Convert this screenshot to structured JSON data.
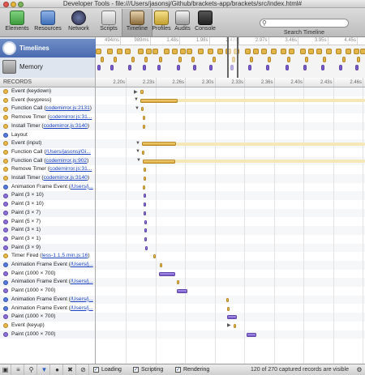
{
  "window": {
    "title": "Developer Tools - file:///Users/jasonsj/Github/brackets-app/brackets/src/index.html#"
  },
  "toolbar": {
    "tools": [
      {
        "label": "Elements",
        "icon": "elements-icon",
        "color": "#3d9a3d"
      },
      {
        "label": "Resources",
        "icon": "resources-icon",
        "color": "#3f6fb8"
      },
      {
        "label": "Network",
        "icon": "network-icon",
        "color": "#2c2c4a"
      },
      {
        "label": "Scripts",
        "icon": "scripts-icon",
        "color": "#5a5a5a"
      },
      {
        "label": "Timeline",
        "icon": "timeline-icon",
        "color": "#8b6a3a"
      },
      {
        "label": "Profiles",
        "icon": "profiles-icon",
        "color": "#c4a030"
      },
      {
        "label": "Audits",
        "icon": "audits-icon",
        "color": "#999999"
      },
      {
        "label": "Console",
        "icon": "console-icon",
        "color": "#333333"
      }
    ],
    "search_placeholder": "",
    "search_label": "Search Timeline"
  },
  "overview": {
    "items": [
      {
        "label": "Timelines",
        "icon": "clock-icon"
      },
      {
        "label": "Memory",
        "icon": "memory-icon"
      }
    ],
    "ticks": [
      "494ms",
      "989ms",
      "1.48s",
      "1.98s",
      "2.47s",
      "2.97s",
      "3.46s",
      "3.95s",
      "4.45s"
    ]
  },
  "records_header": "RECORDS",
  "ruler_ticks": [
    "2.20s",
    "2.23s",
    "2.26s",
    "2.30s",
    "2.33s",
    "2.36s",
    "2.40s",
    "2.43s",
    "2.46s"
  ],
  "records": [
    {
      "color": "y",
      "text": "Event (keydown)",
      "link": ""
    },
    {
      "color": "y",
      "text": "Event (keypress)",
      "link": ""
    },
    {
      "color": "y",
      "text": "Function Call (",
      "link": "codemirror.js:2131",
      "after": ")"
    },
    {
      "color": "y",
      "text": "Remove Timer (",
      "link": "codemirror.js:31...",
      "after": ""
    },
    {
      "color": "y",
      "text": "Install Timer (",
      "link": "codemirror.js:3140",
      "after": ")"
    },
    {
      "color": "b",
      "text": "Layout",
      "link": ""
    },
    {
      "color": "y",
      "text": "Event (input)",
      "link": ""
    },
    {
      "color": "y",
      "text": "Function Call (",
      "link": "/Users/jasonsj/Gi...",
      "after": ""
    },
    {
      "color": "y",
      "text": "Function Call (",
      "link": "codemirror.js:902",
      "after": ")"
    },
    {
      "color": "y",
      "text": "Remove Timer (",
      "link": "codemirror.js:31...",
      "after": ""
    },
    {
      "color": "y",
      "text": "Install Timer (",
      "link": "codemirror.js:3140",
      "after": ")"
    },
    {
      "color": "b",
      "text": "Animation Frame Event (",
      "link": "/Users/j...",
      "after": ""
    },
    {
      "color": "p",
      "text": "Paint (3 × 10)",
      "link": ""
    },
    {
      "color": "p",
      "text": "Paint (3 × 10)",
      "link": ""
    },
    {
      "color": "p",
      "text": "Paint (3 × 7)",
      "link": ""
    },
    {
      "color": "p",
      "text": "Paint (5 × 7)",
      "link": ""
    },
    {
      "color": "p",
      "text": "Paint (3 × 1)",
      "link": ""
    },
    {
      "color": "p",
      "text": "Paint (3 × 1)",
      "link": ""
    },
    {
      "color": "p",
      "text": "Paint (3 × 9)",
      "link": ""
    },
    {
      "color": "y",
      "text": "Timer Fired (",
      "link": "less-1.1.5.min.js:16",
      "after": ")"
    },
    {
      "color": "b",
      "text": "Animation Frame Event (",
      "link": "/Users/j...",
      "after": ""
    },
    {
      "color": "p",
      "text": "Paint (1000 × 700)",
      "link": ""
    },
    {
      "color": "b",
      "text": "Animation Frame Event (",
      "link": "/Users/j...",
      "after": ""
    },
    {
      "color": "p",
      "text": "Paint (1000 × 700)",
      "link": ""
    },
    {
      "color": "b",
      "text": "Animation Frame Event (",
      "link": "/Users/j...",
      "after": ""
    },
    {
      "color": "b",
      "text": "Animation Frame Event (",
      "link": "/Users/j...",
      "after": ""
    },
    {
      "color": "p",
      "text": "Paint (1000 × 700)",
      "link": ""
    },
    {
      "color": "y",
      "text": "Event (keyup)",
      "link": ""
    },
    {
      "color": "p",
      "text": "Paint (1000 × 700)",
      "link": ""
    }
  ],
  "status": {
    "checkboxes": [
      {
        "label": "Loading",
        "checked": true
      },
      {
        "label": "Scripting",
        "checked": true
      },
      {
        "label": "Rendering",
        "checked": true
      }
    ],
    "message": "120 of 270 captured records are visible"
  }
}
